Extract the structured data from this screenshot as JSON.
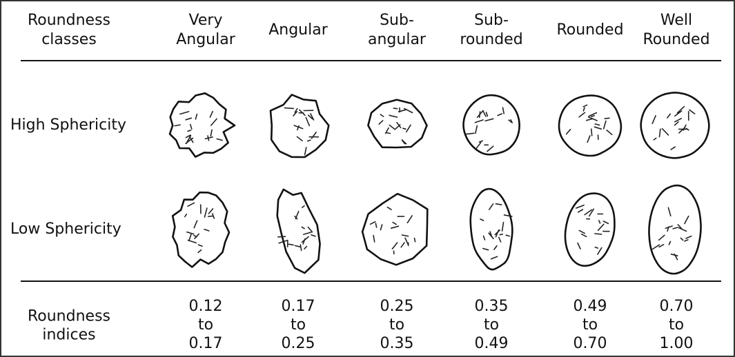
{
  "header": {
    "row_label": [
      "Roundness",
      "classes"
    ],
    "classes": [
      [
        "Very",
        "Angular"
      ],
      [
        "Angular"
      ],
      [
        "Sub-",
        "angular"
      ],
      [
        "Sub-",
        "rounded"
      ],
      [
        "Rounded"
      ],
      [
        "Well",
        "Rounded"
      ]
    ]
  },
  "rows": [
    {
      "label": "High Sphericity"
    },
    {
      "label": "Low Sphericity"
    }
  ],
  "footer": {
    "label": [
      "Roundness",
      "indices"
    ],
    "ranges": [
      [
        "0.12",
        "to",
        "0.17"
      ],
      [
        "0.17",
        "to",
        "0.25"
      ],
      [
        "0.25",
        "to",
        "0.35"
      ],
      [
        "0.35",
        "to",
        "0.49"
      ],
      [
        "0.49",
        "to",
        "0.70"
      ],
      [
        "0.70",
        "to",
        "1.00"
      ]
    ]
  }
}
